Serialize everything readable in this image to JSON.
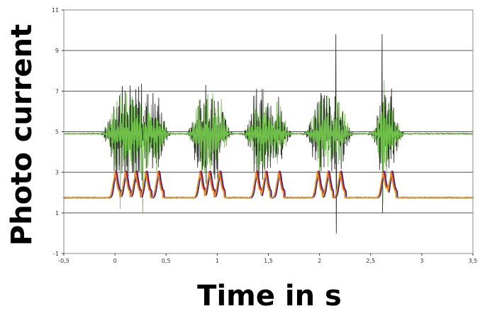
{
  "chart_data": {
    "type": "line",
    "xlabel": "Time in s",
    "ylabel": "Photo current",
    "xlim": [
      -0.5,
      3.5
    ],
    "ylim": [
      -1,
      11
    ],
    "x_ticks": [
      "-0,5",
      "0",
      "0,5",
      "1",
      "1,5",
      "2",
      "2,5",
      "3",
      "3,5"
    ],
    "y_ticks": [
      "-1",
      "1",
      "3",
      "5",
      "7",
      "9",
      "11"
    ],
    "grid": true,
    "baselines": {
      "upper": 4.9,
      "lower": 1.75
    },
    "pulse_groups_x": [
      0.0,
      0.1,
      0.2,
      0.3,
      0.42,
      0.83,
      0.92,
      1.02,
      1.38,
      1.47,
      1.6,
      1.98,
      2.08,
      2.2,
      2.62,
      2.7
    ],
    "spike_peaks": [
      {
        "x": 2.16,
        "y": 9.8
      },
      {
        "x": 2.16,
        "y": 0.0
      },
      {
        "x": 2.61,
        "y": 9.8
      },
      {
        "x": 2.61,
        "y": 1.0
      }
    ],
    "series": [
      {
        "color": "#2b2b2b"
      },
      {
        "color": "#6fbf4a"
      },
      {
        "color": "#2a2a9a"
      },
      {
        "color": "#e02020"
      },
      {
        "color": "#e0a030"
      }
    ]
  }
}
